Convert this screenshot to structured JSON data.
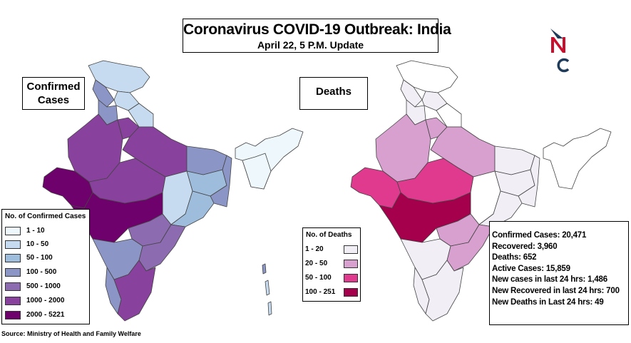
{
  "header": {
    "title": "Coronavirus COVID-19 Outbreak: India",
    "subtitle": "April 22, 5 P.M. Update"
  },
  "logo": {
    "letters": "NC",
    "colors": {
      "n": "#c8102e",
      "c": "#1f3b5a",
      "accent": "#1f3b5a"
    }
  },
  "maps": {
    "confirmed_label": "Confirmed Cases",
    "deaths_label": "Deaths"
  },
  "legend_confirmed": {
    "title": "No. of Confirmed Cases",
    "items": [
      {
        "range": "1 - 10",
        "color": "#eef7fb"
      },
      {
        "range": "10 - 50",
        "color": "#c6dbef"
      },
      {
        "range": "50 - 100",
        "color": "#9ebcdc"
      },
      {
        "range": "100 - 500",
        "color": "#8c96c6"
      },
      {
        "range": "500 - 1000",
        "color": "#8c6bb1"
      },
      {
        "range": "1000 - 2000",
        "color": "#88419d"
      },
      {
        "range": "2000 - 5221",
        "color": "#6e016b"
      }
    ]
  },
  "legend_deaths": {
    "title": "No. of Deaths",
    "items": [
      {
        "range": "1 - 20",
        "color": "#f1eef6"
      },
      {
        "range": "20 - 50",
        "color": "#d7a0cf"
      },
      {
        "range": "50 - 100",
        "color": "#df3a8e"
      },
      {
        "range": "100 - 251",
        "color": "#a4004b"
      }
    ]
  },
  "stats": {
    "lines": [
      "Confirmed Cases: 20,471",
      "Recovered: 3,960",
      "Deaths: 652",
      "Active Cases: 15,859",
      "New cases in last 24 hrs: 1,486",
      "New Recovered in last 24 hrs: 700",
      "New Deaths in Last 24 hrs: 49"
    ]
  },
  "footer": {
    "source": "Source: Ministry of Health and Family Welfare"
  }
}
